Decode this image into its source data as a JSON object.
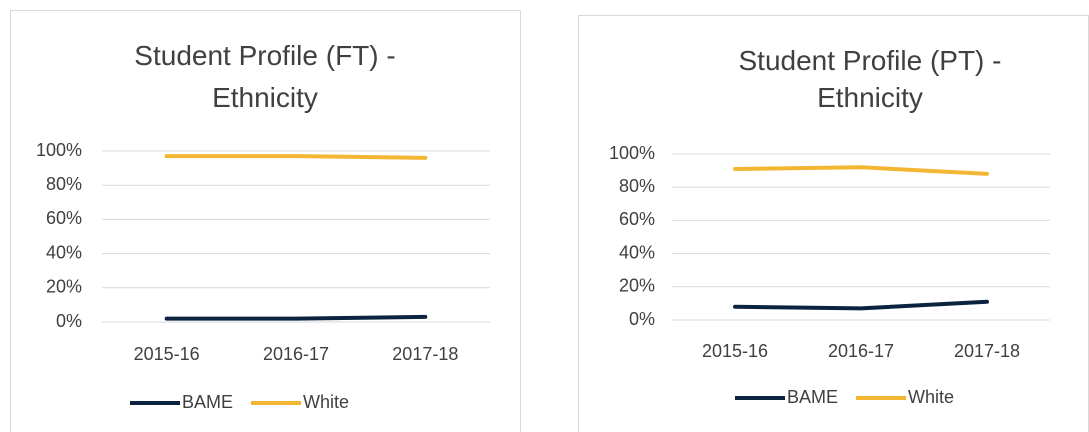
{
  "chart_data": [
    {
      "type": "line",
      "title": "Student Profile (FT) - Ethnicity",
      "categories": [
        "2015-16",
        "2016-17",
        "2017-18"
      ],
      "series": [
        {
          "name": "BAME",
          "color": "#0c2340",
          "values": [
            2,
            2,
            3
          ]
        },
        {
          "name": "White",
          "color": "#f2b632",
          "values": [
            97,
            97,
            96
          ]
        }
      ],
      "ylim": [
        0,
        100
      ],
      "yticks": [
        {
          "value": 0,
          "label": "0%"
        },
        {
          "value": 20,
          "label": "20%"
        },
        {
          "value": 40,
          "label": "40%"
        },
        {
          "value": 60,
          "label": "60%"
        },
        {
          "value": 80,
          "label": "80%"
        },
        {
          "value": 100,
          "label": "100%"
        }
      ],
      "grid": true,
      "legend": "bottom"
    },
    {
      "type": "line",
      "title": "Student Profile (PT) - Ethnicity",
      "categories": [
        "2015-16",
        "2016-17",
        "2017-18"
      ],
      "series": [
        {
          "name": "BAME",
          "color": "#0c2340",
          "values": [
            8,
            7,
            11
          ]
        },
        {
          "name": "White",
          "color": "#f2b632",
          "values": [
            91,
            92,
            88
          ]
        }
      ],
      "ylim": [
        0,
        100
      ],
      "yticks": [
        {
          "value": 0,
          "label": "0%"
        },
        {
          "value": 20,
          "label": "20%"
        },
        {
          "value": 40,
          "label": "40%"
        },
        {
          "value": 60,
          "label": "60%"
        },
        {
          "value": 80,
          "label": "80%"
        },
        {
          "value": 100,
          "label": "100%"
        }
      ],
      "grid": true,
      "legend": "bottom"
    }
  ]
}
